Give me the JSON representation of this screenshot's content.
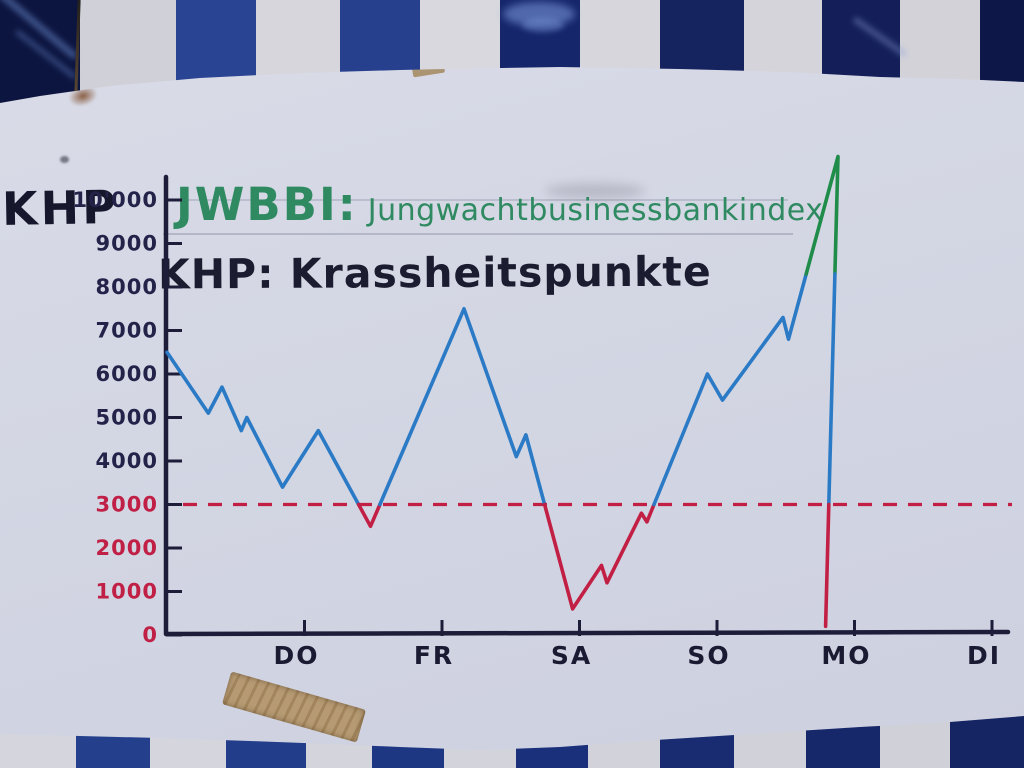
{
  "board": {
    "y_axis_title": "KHP",
    "legend_jwbbi_abbr": "JWBBI:",
    "legend_jwbbi_full": "Jungwachtbusinessbankindex",
    "legend_khp": "KHP: Krassheitspunkte"
  },
  "chart_data": {
    "type": "line",
    "title": "JWBBI: Jungwachtbusinessbankindex",
    "subtitle": "KHP: Krassheitspunkte",
    "ylabel": "KHP",
    "ylim": [
      0,
      10000
    ],
    "grid": false,
    "x_ticks": [
      {
        "label": "DO",
        "day": 1,
        "emph": false
      },
      {
        "label": "FR",
        "day": 2,
        "emph": true
      },
      {
        "label": "SA",
        "day": 3,
        "emph": false
      },
      {
        "label": "SO",
        "day": 4,
        "emph": false
      },
      {
        "label": "MO",
        "day": 5,
        "emph": false
      },
      {
        "label": "DI",
        "day": 6,
        "emph": false
      }
    ],
    "y_ticks": [
      {
        "label": "10'000",
        "value": 10000,
        "color": "#23234a"
      },
      {
        "label": "9000",
        "value": 9000,
        "color": "#23234a"
      },
      {
        "label": "8000",
        "value": 8000,
        "color": "#23234a"
      },
      {
        "label": "7000",
        "value": 7000,
        "color": "#23234a"
      },
      {
        "label": "6000",
        "value": 6000,
        "color": "#23234a"
      },
      {
        "label": "5000",
        "value": 5000,
        "color": "#23234a"
      },
      {
        "label": "4000",
        "value": 4000,
        "color": "#23234a"
      },
      {
        "label": "3000",
        "value": 3000,
        "color": "#c02045"
      },
      {
        "label": "2000",
        "value": 2000,
        "color": "#c02045"
      },
      {
        "label": "1000",
        "value": 1000,
        "color": "#c02045"
      },
      {
        "label": "0",
        "value": 0,
        "color": "#c02045"
      }
    ],
    "threshold": {
      "value": 3000,
      "color": "#c21f45",
      "style": "dashed"
    },
    "color_rules": {
      "low_threshold": 3000,
      "low_color": "#c21f45",
      "high_threshold": 8300,
      "high_color": "#1f8c49",
      "default_color": "#2b7ac6"
    },
    "series": [
      {
        "name": "JWBBI",
        "points": [
          {
            "d": 0.0,
            "v": 6500
          },
          {
            "d": 0.3,
            "v": 5100
          },
          {
            "d": 0.4,
            "v": 5700
          },
          {
            "d": 0.54,
            "v": 4700
          },
          {
            "d": 0.58,
            "v": 5000
          },
          {
            "d": 0.84,
            "v": 3400
          },
          {
            "d": 1.1,
            "v": 4700
          },
          {
            "d": 1.48,
            "v": 2500
          },
          {
            "d": 2.16,
            "v": 7500
          },
          {
            "d": 2.54,
            "v": 4100
          },
          {
            "d": 2.61,
            "v": 4600
          },
          {
            "d": 2.95,
            "v": 600
          },
          {
            "d": 3.16,
            "v": 1600
          },
          {
            "d": 3.2,
            "v": 1200
          },
          {
            "d": 3.45,
            "v": 2800
          },
          {
            "d": 3.49,
            "v": 2600
          },
          {
            "d": 3.93,
            "v": 6000
          },
          {
            "d": 4.04,
            "v": 5400
          },
          {
            "d": 4.48,
            "v": 7300
          },
          {
            "d": 4.52,
            "v": 6800
          },
          {
            "d": 4.88,
            "v": 11000
          },
          {
            "d": 4.79,
            "v": 200
          }
        ]
      }
    ],
    "axis_color": "#1d1d3a"
  }
}
